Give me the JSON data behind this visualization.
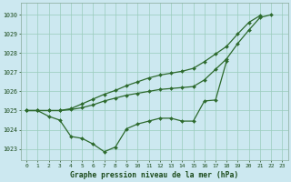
{
  "title": "Graphe pression niveau de la mer (hPa)",
  "bg_color": "#cce8f0",
  "grid_color": "#99ccbb",
  "line_color": "#2d6a2d",
  "ylim": [
    1022.4,
    1030.6
  ],
  "yticks": [
    1023,
    1024,
    1025,
    1026,
    1027,
    1028,
    1029,
    1030
  ],
  "xticks": [
    0,
    1,
    2,
    3,
    4,
    5,
    6,
    7,
    8,
    9,
    10,
    11,
    12,
    13,
    14,
    15,
    16,
    17,
    18,
    19,
    20,
    21,
    22,
    23
  ],
  "line_zigzag": [
    1025.0,
    1025.0,
    1024.7,
    1024.5,
    1023.65,
    1023.55,
    1023.25,
    1022.85,
    1023.1,
    1024.05,
    1024.3,
    1024.45,
    1024.6,
    1024.6,
    1024.45,
    1024.45,
    1025.5,
    1025.55,
    1027.6,
    null,
    null,
    null,
    null,
    null
  ],
  "line_upper1": [
    1025.0,
    1025.0,
    1025.0,
    1025.0,
    1025.05,
    1025.15,
    1025.3,
    1025.5,
    1025.65,
    1025.8,
    1025.9,
    1026.0,
    1026.1,
    1026.15,
    1026.2,
    1026.25,
    1026.6,
    1027.15,
    1027.7,
    1028.5,
    1029.2,
    1029.85,
    1030.0,
    null
  ],
  "line_upper2": [
    1025.0,
    1025.0,
    1025.0,
    1025.0,
    1025.1,
    1025.35,
    1025.6,
    1025.85,
    1026.05,
    1026.3,
    1026.5,
    1026.7,
    1026.85,
    1026.95,
    1027.05,
    1027.2,
    1027.55,
    1027.95,
    1028.35,
    1029.0,
    1029.6,
    1029.95,
    null,
    null
  ]
}
